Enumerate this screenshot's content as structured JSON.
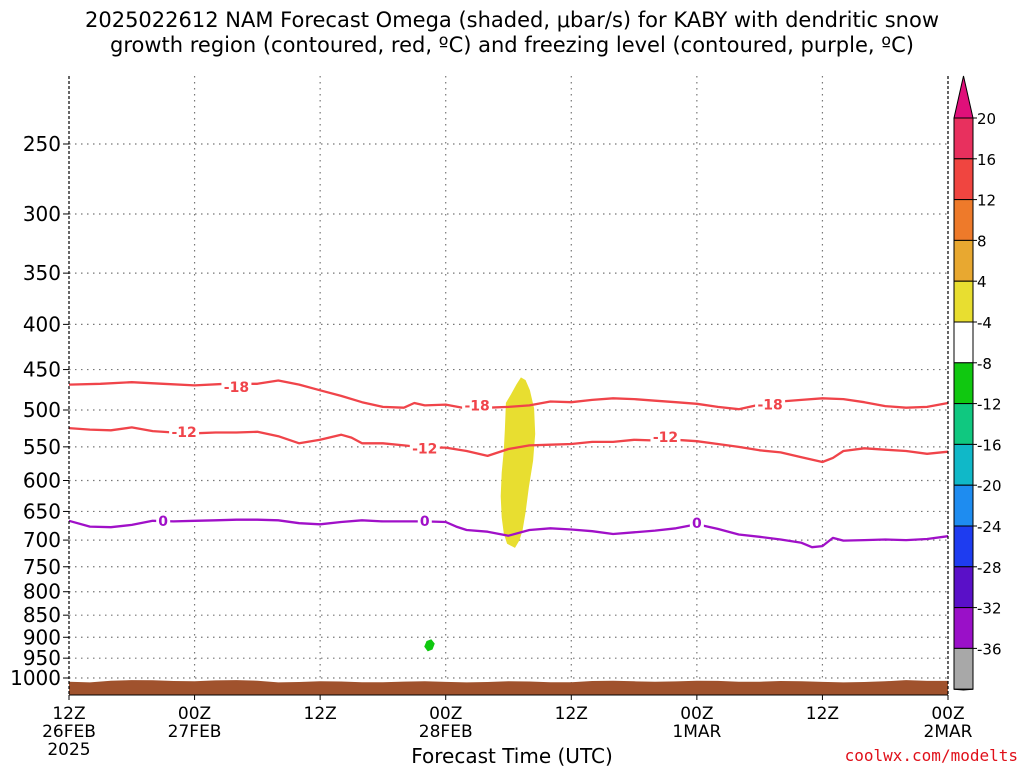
{
  "title": {
    "line1": "2025022612 NAM Forecast Omega (shaded, μbar/s) for KABY with dendritic snow",
    "line2": "growth region (contoured, red, ºC) and freezing level (contoured, purple, ºC)"
  },
  "xlabel": "Forecast Time (UTC)",
  "credit": "coolwx.com/modelts",
  "chart_data": {
    "type": "contour",
    "x_ticks": [
      {
        "hour": 0,
        "line1": "12Z",
        "line2": "26FEB",
        "line3": "2025"
      },
      {
        "hour": 12,
        "line1": "00Z",
        "line2": "27FEB",
        "line3": ""
      },
      {
        "hour": 24,
        "line1": "12Z",
        "line2": "",
        "line3": ""
      },
      {
        "hour": 36,
        "line1": "00Z",
        "line2": "28FEB",
        "line3": ""
      },
      {
        "hour": 48,
        "line1": "12Z",
        "line2": "",
        "line3": ""
      },
      {
        "hour": 60,
        "line1": "00Z",
        "line2": "1MAR",
        "line3": ""
      },
      {
        "hour": 72,
        "line1": "12Z",
        "line2": "",
        "line3": ""
      },
      {
        "hour": 84,
        "line1": "00Z",
        "line2": "2MAR",
        "line3": ""
      }
    ],
    "xlim": [
      0,
      84
    ],
    "y_ticks": [
      250,
      300,
      350,
      400,
      450,
      500,
      550,
      600,
      650,
      700,
      750,
      800,
      850,
      900,
      950,
      1000
    ],
    "ylim": [
      200,
      1050
    ],
    "y_scale": "log-pressure",
    "grid": true,
    "colorbar": {
      "labels": [
        "20",
        "16",
        "12",
        "8",
        "4",
        "-4",
        "-8",
        "-12",
        "-16",
        "-20",
        "-24",
        "-28",
        "-32",
        "-36"
      ],
      "colors": [
        "#e8305e",
        "#f04540",
        "#ee7a2a",
        "#e8a830",
        "#e8de30",
        "#ffffff",
        "#10c810",
        "#10c880",
        "#10b8c8",
        "#1e8cf0",
        "#1e3cf0",
        "#5a10c8",
        "#9a10c8",
        "#a8a8a8"
      ],
      "top_color": "#e0107a",
      "bottom_color": "#000000"
    },
    "contours": [
      {
        "label": "-18",
        "color": "#f0444a",
        "points": [
          [
            0,
            468
          ],
          [
            3,
            467
          ],
          [
            6,
            465
          ],
          [
            9,
            467
          ],
          [
            12,
            469
          ],
          [
            15,
            467
          ],
          [
            18,
            467
          ],
          [
            20,
            463
          ],
          [
            22,
            468
          ],
          [
            24,
            475
          ],
          [
            26,
            482
          ],
          [
            28,
            490
          ],
          [
            30,
            496
          ],
          [
            32,
            497
          ],
          [
            33,
            491
          ],
          [
            34,
            494
          ],
          [
            36,
            493
          ],
          [
            38,
            498
          ],
          [
            40,
            497
          ],
          [
            42,
            496
          ],
          [
            44,
            494
          ],
          [
            46,
            489
          ],
          [
            48,
            490
          ],
          [
            50,
            487
          ],
          [
            52,
            485
          ],
          [
            54,
            486
          ],
          [
            56,
            488
          ],
          [
            58,
            490
          ],
          [
            60,
            492
          ],
          [
            62,
            496
          ],
          [
            64,
            499
          ],
          [
            66,
            493
          ],
          [
            68,
            489
          ],
          [
            70,
            487
          ],
          [
            72,
            485
          ],
          [
            74,
            486
          ],
          [
            76,
            490
          ],
          [
            78,
            495
          ],
          [
            80,
            497
          ],
          [
            82,
            496
          ],
          [
            84,
            491
          ]
        ],
        "label_at": [
          [
            16,
            471
          ],
          [
            39,
            494
          ],
          [
            67,
            493
          ]
        ]
      },
      {
        "label": "-12",
        "color": "#f0444a",
        "points": [
          [
            0,
            524
          ],
          [
            2,
            526
          ],
          [
            4,
            527
          ],
          [
            6,
            523
          ],
          [
            8,
            528
          ],
          [
            10,
            530
          ],
          [
            12,
            531
          ],
          [
            14,
            530
          ],
          [
            16,
            530
          ],
          [
            18,
            529
          ],
          [
            20,
            535
          ],
          [
            22,
            545
          ],
          [
            24,
            540
          ],
          [
            26,
            533
          ],
          [
            27,
            537
          ],
          [
            28,
            545
          ],
          [
            30,
            545
          ],
          [
            32,
            548
          ],
          [
            34,
            551
          ],
          [
            36,
            551
          ],
          [
            38,
            556
          ],
          [
            40,
            563
          ],
          [
            42,
            553
          ],
          [
            44,
            548
          ],
          [
            46,
            547
          ],
          [
            48,
            546
          ],
          [
            50,
            543
          ],
          [
            52,
            543
          ],
          [
            54,
            540
          ],
          [
            56,
            541
          ],
          [
            58,
            540
          ],
          [
            60,
            542
          ],
          [
            62,
            546
          ],
          [
            64,
            550
          ],
          [
            66,
            555
          ],
          [
            68,
            558
          ],
          [
            70,
            565
          ],
          [
            72,
            572
          ],
          [
            73,
            566
          ],
          [
            74,
            556
          ],
          [
            76,
            552
          ],
          [
            78,
            554
          ],
          [
            80,
            556
          ],
          [
            82,
            560
          ],
          [
            84,
            557
          ]
        ],
        "label_at": [
          [
            11,
            529
          ],
          [
            34,
            552
          ],
          [
            57,
            536
          ]
        ]
      },
      {
        "label": "0",
        "color": "#a010c8",
        "points": [
          [
            0,
            666
          ],
          [
            2,
            676
          ],
          [
            4,
            677
          ],
          [
            6,
            673
          ],
          [
            8,
            666
          ],
          [
            10,
            667
          ],
          [
            12,
            666
          ],
          [
            14,
            665
          ],
          [
            16,
            664
          ],
          [
            18,
            664
          ],
          [
            20,
            665
          ],
          [
            22,
            670
          ],
          [
            24,
            672
          ],
          [
            26,
            668
          ],
          [
            28,
            665
          ],
          [
            30,
            667
          ],
          [
            32,
            667
          ],
          [
            34,
            667
          ],
          [
            36,
            668
          ],
          [
            37,
            676
          ],
          [
            38,
            682
          ],
          [
            40,
            685
          ],
          [
            42,
            692
          ],
          [
            44,
            682
          ],
          [
            46,
            679
          ],
          [
            48,
            681
          ],
          [
            50,
            684
          ],
          [
            52,
            689
          ],
          [
            54,
            686
          ],
          [
            56,
            683
          ],
          [
            58,
            679
          ],
          [
            60,
            672
          ],
          [
            62,
            680
          ],
          [
            64,
            690
          ],
          [
            66,
            694
          ],
          [
            68,
            699
          ],
          [
            70,
            705
          ],
          [
            71,
            713
          ],
          [
            72,
            711
          ],
          [
            73,
            696
          ],
          [
            74,
            701
          ],
          [
            76,
            700
          ],
          [
            78,
            699
          ],
          [
            80,
            700
          ],
          [
            82,
            698
          ],
          [
            84,
            693
          ]
        ],
        "label_at": [
          [
            9,
            666
          ],
          [
            34,
            666
          ],
          [
            60,
            670
          ]
        ]
      }
    ],
    "shaded_regions": [
      {
        "value_range": "4 to 8",
        "color": "#e8de30",
        "points": [
          [
            41.8,
            491
          ],
          [
            42.3,
            480
          ],
          [
            42.8,
            468
          ],
          [
            43.2,
            460
          ],
          [
            43.6,
            463
          ],
          [
            44.0,
            475
          ],
          [
            44.4,
            498
          ],
          [
            44.5,
            532
          ],
          [
            44.3,
            570
          ],
          [
            43.9,
            610
          ],
          [
            43.6,
            650
          ],
          [
            43.3,
            682
          ],
          [
            43.0,
            700
          ],
          [
            42.6,
            713
          ],
          [
            41.9,
            706
          ],
          [
            41.6,
            688
          ],
          [
            41.4,
            660
          ],
          [
            41.3,
            625
          ],
          [
            41.4,
            588
          ],
          [
            41.6,
            555
          ],
          [
            41.7,
            525
          ]
        ]
      },
      {
        "value_range": "-8 to -4",
        "color": "#10c810",
        "points": [
          [
            34.2,
            910
          ],
          [
            34.6,
            906
          ],
          [
            34.9,
            915
          ],
          [
            34.7,
            928
          ],
          [
            34.3,
            932
          ],
          [
            34.0,
            922
          ]
        ]
      }
    ],
    "ground": {
      "color": "#a0522d",
      "pressure": 1010
    }
  }
}
